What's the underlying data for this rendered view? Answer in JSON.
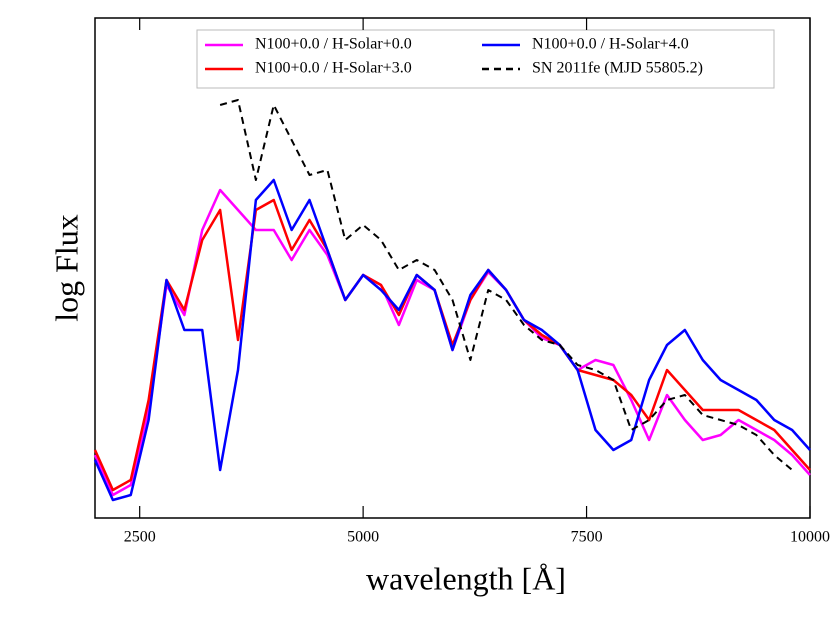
{
  "chart_data": {
    "type": "line",
    "xlabel": "wavelength [Å]",
    "ylabel": "log Flux",
    "x": [
      2000,
      2200,
      2400,
      2600,
      2800,
      3000,
      3200,
      3400,
      3600,
      3800,
      4000,
      4200,
      4400,
      4600,
      4800,
      5000,
      5200,
      5400,
      5600,
      5800,
      6000,
      6200,
      6400,
      6600,
      6800,
      7000,
      7200,
      7400,
      7600,
      7800,
      8000,
      8200,
      8400,
      8600,
      8800,
      9000,
      9200,
      9400,
      9600,
      9800,
      10000
    ],
    "xlim": [
      2000,
      10000
    ],
    "xticks": [
      2500,
      5000,
      7500,
      10000
    ],
    "ylim": [
      0,
      500
    ],
    "series": [
      {
        "name": "N100+0.0 / H-Solar+0.0",
        "color": "#ff00ff",
        "dash": false,
        "values": [
          63,
          23,
          33,
          108,
          233,
          203,
          288,
          328,
          308,
          288,
          288,
          258,
          288,
          263,
          218,
          243,
          233,
          193,
          238,
          228,
          168,
          218,
          246,
          228,
          198,
          180,
          173,
          148,
          158,
          153,
          118,
          78,
          123,
          98,
          78,
          83,
          98,
          88,
          78,
          63,
          43
        ]
      },
      {
        "name": "N100+0.0 / H-Solar+3.0",
        "color": "#ff0000",
        "dash": false,
        "values": [
          68,
          28,
          38,
          118,
          238,
          208,
          278,
          308,
          178,
          308,
          318,
          268,
          298,
          268,
          218,
          243,
          233,
          203,
          243,
          228,
          173,
          218,
          248,
          228,
          198,
          183,
          173,
          148,
          143,
          138,
          123,
          98,
          148,
          128,
          108,
          108,
          108,
          98,
          88,
          68,
          48
        ]
      },
      {
        "name": "N100+0.0 / H-Solar+4.0",
        "color": "#0000ff",
        "dash": false,
        "values": [
          58,
          18,
          23,
          98,
          238,
          188,
          188,
          48,
          148,
          318,
          338,
          288,
          318,
          268,
          218,
          243,
          228,
          208,
          243,
          228,
          168,
          223,
          248,
          228,
          198,
          188,
          173,
          148,
          88,
          68,
          78,
          138,
          173,
          188,
          158,
          138,
          128,
          118,
          98,
          88,
          68
        ]
      },
      {
        "name": "SN 2011fe (MJD 55805.2)",
        "color": "#000000",
        "dash": true,
        "values": [
          null,
          null,
          null,
          null,
          null,
          null,
          null,
          413,
          418,
          338,
          413,
          378,
          343,
          348,
          278,
          293,
          278,
          248,
          258,
          248,
          218,
          158,
          228,
          218,
          193,
          178,
          173,
          153,
          148,
          138,
          88,
          98,
          118,
          123,
          103,
          98,
          93,
          83,
          63,
          48,
          null
        ]
      }
    ]
  }
}
